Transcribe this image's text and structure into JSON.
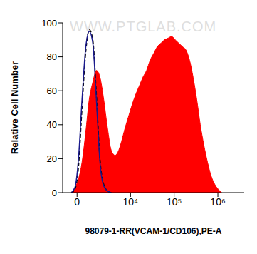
{
  "chart_data": {
    "type": "histogram",
    "xlabel": "98079-1-RR(VCAM-1/CD106),PE-A",
    "ylabel": "Relative Cell Number",
    "annotations": [
      "WWW.PTGLAB.COM"
    ],
    "x": [
      -368,
      -136,
      90,
      320,
      561,
      827,
      1115,
      1443,
      1825,
      2293,
      2860,
      3533,
      4365,
      5339,
      6170,
      7476,
      9050,
      10960,
      13260,
      16020,
      19320,
      23370,
      28200,
      34080,
      41160,
      49700,
      60000,
      72480,
      87500,
      105700,
      127700,
      154200,
      186000,
      225000,
      271000,
      328000,
      396000,
      478000,
      578000,
      698000,
      843000,
      1018000,
      1230000
    ],
    "series": [
      {
        "type": "area",
        "color": "#ff0000",
        "values": [
          0,
          3,
          8,
          18,
          35,
          55,
          65,
          72,
          68,
          55,
          38,
          25,
          22,
          25,
          30,
          38,
          45,
          52,
          58,
          63,
          68,
          72,
          78,
          82,
          86,
          88,
          90,
          91,
          92,
          90,
          88,
          86,
          84,
          78,
          68,
          55,
          40,
          28,
          18,
          10,
          5,
          2,
          0
        ]
      },
      {
        "type": "line",
        "color": "#000000",
        "line_style": "dashed",
        "values": [
          0,
          2,
          15,
          50,
          82,
          96,
          90,
          58,
          20,
          5,
          1,
          0,
          null,
          null,
          null,
          null,
          null,
          null,
          null,
          null,
          null,
          null,
          null,
          null,
          null,
          null,
          null,
          null,
          null,
          null,
          null,
          null,
          null,
          null,
          null,
          null,
          null,
          null,
          null,
          null,
          null,
          null,
          null
        ]
      },
      {
        "type": "line",
        "color": "#1a1a8c",
        "line_style": "solid",
        "values": [
          0,
          3,
          20,
          55,
          85,
          95,
          88,
          55,
          18,
          4,
          1,
          0,
          null,
          null,
          null,
          null,
          null,
          null,
          null,
          null,
          null,
          null,
          null,
          null,
          null,
          null,
          null,
          null,
          null,
          null,
          null,
          null,
          null,
          null,
          null,
          null,
          null,
          null,
          null,
          null,
          null,
          null,
          null
        ]
      }
    ],
    "xlim": [
      -1000,
      4000000
    ],
    "xticks": [
      0,
      {
        "value": 10000,
        "label": "10⁴"
      },
      {
        "value": 100000,
        "label": "10⁵"
      },
      {
        "value": 1000000,
        "label": "10⁶"
      }
    ],
    "ylim": [
      0,
      100
    ],
    "yticks": [
      0,
      20,
      40,
      60,
      80,
      100
    ],
    "grid": false
  }
}
